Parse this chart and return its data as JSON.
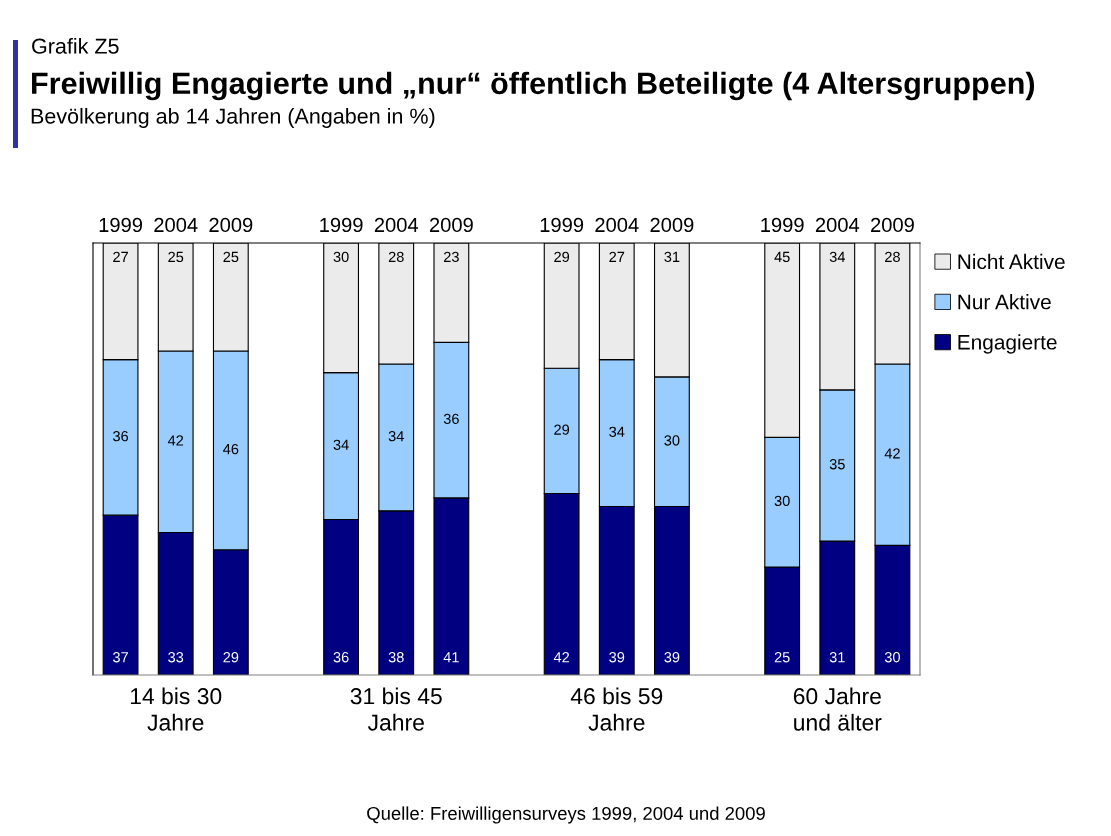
{
  "chart_data": {
    "type": "bar",
    "stacked": true,
    "title": "Freiwillig Engagierte und „nur“ öffentlich Beteiligte (4 Altersgruppen)",
    "subtitle": "Bevölkerung ab 14 Jahren (Angaben in %)",
    "categories": [
      "1999",
      "2004",
      "2009",
      null,
      "1999",
      "2004",
      "2009",
      null,
      "1999",
      "2004",
      "2009",
      null,
      "1999",
      "2004",
      "2009"
    ],
    "series": [
      {
        "name": "Engagierte",
        "color": "#000080",
        "values": [
          37,
          33,
          29,
          null,
          36,
          38,
          41,
          null,
          42,
          39,
          39,
          null,
          25,
          31,
          30
        ]
      },
      {
        "name": "Nur Aktive",
        "color": "#99ccff",
        "values": [
          36,
          42,
          46,
          null,
          34,
          34,
          36,
          null,
          29,
          34,
          30,
          null,
          30,
          35,
          42
        ]
      },
      {
        "name": "Nicht Aktive",
        "color": "#ebebeb",
        "values": [
          27,
          25,
          25,
          null,
          30,
          28,
          23,
          null,
          29,
          27,
          31,
          null,
          45,
          34,
          28
        ]
      }
    ],
    "ylim": [
      0,
      100
    ],
    "tick_labels": "x",
    "data_labels": true,
    "legend": "top right",
    "annotations": [
      "14 bis 30\nJahre",
      "31 bis 45\nJahre",
      "46 bis 59\nJahre",
      "60 Jahre\nund älter",
      "Grafik Z5",
      "Quelle: Freiwilligensurveys 1999, 2004 und 2009"
    ]
  }
}
